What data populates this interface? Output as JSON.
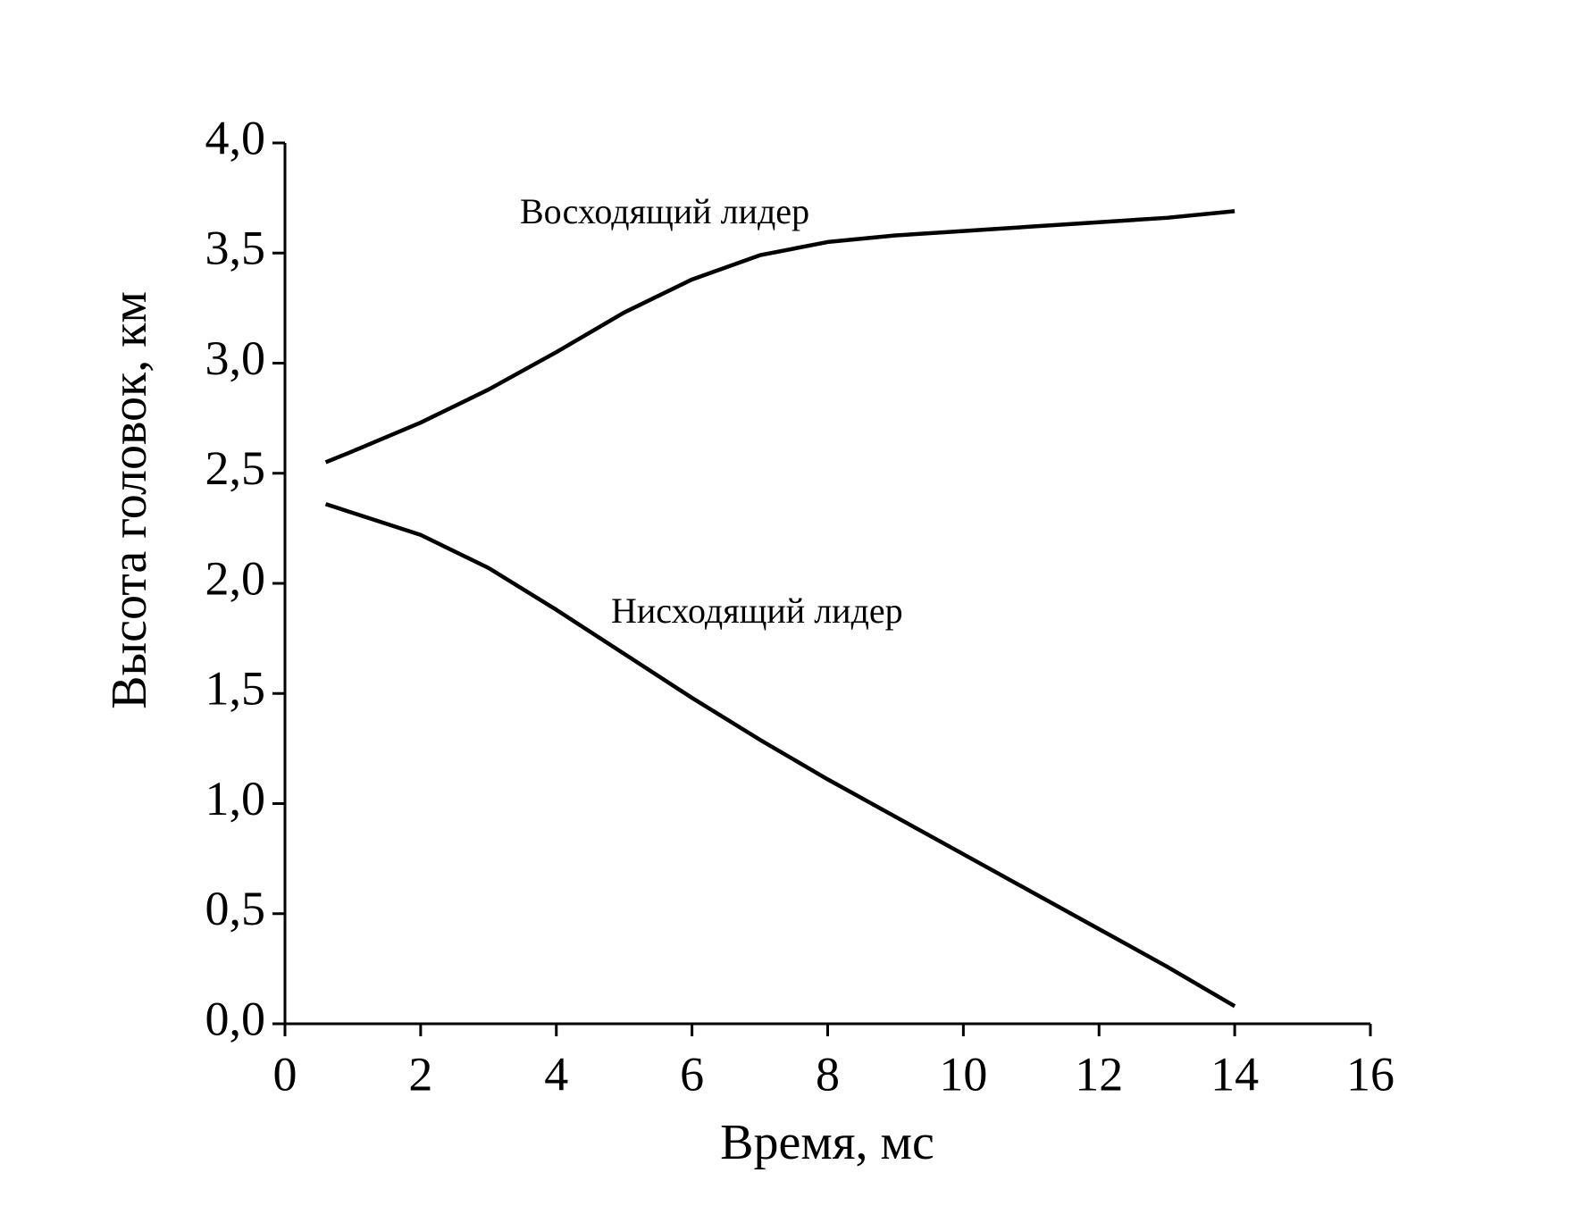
{
  "chart_data": {
    "type": "line",
    "xlabel": "Время,  мс",
    "ylabel": "Высота головок,  км",
    "xlim": [
      0,
      16
    ],
    "xticks": [
      0,
      2,
      4,
      6,
      8,
      10,
      12,
      14,
      16
    ],
    "ylim": [
      0,
      4
    ],
    "yticks": [
      {
        "value": 0,
        "label": "0,0"
      },
      {
        "value": 0.5,
        "label": "0,5"
      },
      {
        "value": 1,
        "label": "1,0"
      },
      {
        "value": 1.5,
        "label": "1,5"
      },
      {
        "value": 2,
        "label": "2,0"
      },
      {
        "value": 2.5,
        "label": "2,5"
      },
      {
        "value": 3,
        "label": "3,0"
      },
      {
        "value": 3.5,
        "label": "3,5"
      },
      {
        "value": 4,
        "label": "4,0"
      }
    ],
    "x": [
      0.6,
      1,
      2,
      3,
      4,
      5,
      6,
      7,
      8,
      9,
      10,
      11,
      12,
      13,
      14
    ],
    "series": [
      {
        "name": "Восходящий лидер",
        "color": "#000000",
        "values": [
          2.55,
          2.6,
          2.73,
          2.88,
          3.05,
          3.23,
          3.38,
          3.49,
          3.55,
          3.58,
          3.6,
          3.62,
          3.64,
          3.66,
          3.69
        ]
      },
      {
        "name": "Нисходящий лидер",
        "color": "#000000",
        "values": [
          2.36,
          2.32,
          2.22,
          2.07,
          1.88,
          1.68,
          1.48,
          1.29,
          1.11,
          0.94,
          0.77,
          0.6,
          0.43,
          0.26,
          0.08
        ]
      }
    ]
  }
}
